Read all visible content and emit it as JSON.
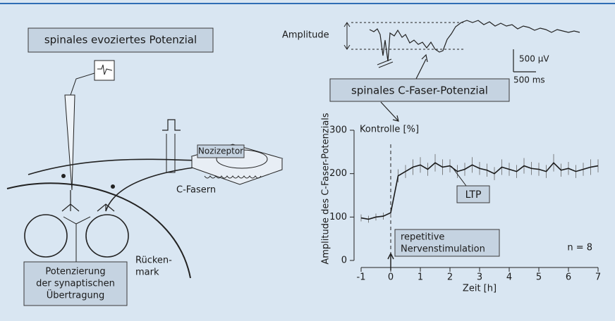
{
  "left_title": "spinales evoziertes Potenzial",
  "nociceptor_label": "Nozizeptor",
  "fiber_label": "C-Fasern",
  "cord_label": [
    "Rücken-",
    "mark"
  ],
  "potentiation_label": [
    "Potenzierung",
    "der synaptischen",
    "Übertragung"
  ],
  "trace": {
    "amplitude_label": "Amplitude",
    "voltage_scale": "500 µV",
    "time_scale": "500 ms",
    "caption": "spinales C-Faser-Potenzial"
  },
  "chart_data": {
    "type": "line",
    "y_label": "Amplitude des C-Faser-Potenzials",
    "y_unit_label": "Kontrolle [%]",
    "x_label": "Zeit [h]",
    "annotation": "LTP",
    "stimulation_label": [
      "repetitive",
      "Nervenstimulation"
    ],
    "n_label": "n = 8",
    "x": [
      -1,
      -0.75,
      -0.5,
      -0.25,
      0,
      0.25,
      0.5,
      0.75,
      1,
      1.25,
      1.5,
      1.75,
      2,
      2.25,
      2.5,
      2.75,
      3,
      3.25,
      3.5,
      3.75,
      4,
      4.25,
      4.5,
      4.75,
      5,
      5.25,
      5.5,
      5.75,
      6,
      6.25,
      6.5,
      6.75,
      7
    ],
    "series": [
      {
        "color": "#1a1a1a",
        "values": [
          98,
          95,
          100,
          102,
          110,
          195,
          205,
          215,
          220,
          210,
          225,
          215,
          218,
          205,
          210,
          220,
          212,
          208,
          200,
          215,
          210,
          205,
          218,
          212,
          210,
          205,
          225,
          208,
          212,
          205,
          210,
          215,
          218
        ],
        "errors": [
          8,
          8,
          8,
          8,
          10,
          15,
          15,
          18,
          18,
          15,
          20,
          18,
          15,
          15,
          15,
          18,
          15,
          15,
          15,
          18,
          15,
          15,
          18,
          15,
          15,
          15,
          20,
          15,
          15,
          15,
          15,
          18,
          15
        ]
      }
    ],
    "xlim": [
      -1,
      7
    ],
    "ylim": [
      0,
      300
    ],
    "xticks": [
      -1,
      0,
      1,
      2,
      3,
      4,
      5,
      6,
      7
    ],
    "yticks": [
      0,
      100,
      200,
      300
    ]
  }
}
